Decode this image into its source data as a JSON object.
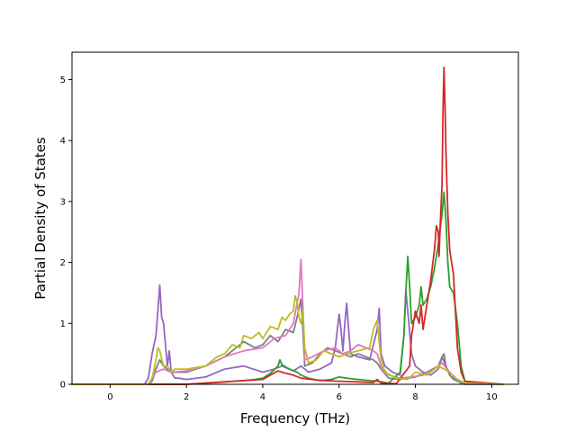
{
  "chart_data": {
    "type": "line",
    "title": "",
    "xlabel": "Frequency (THz)",
    "ylabel": "Partial Density of States",
    "xlim": [
      -1.0,
      10.7
    ],
    "ylim": [
      0,
      5.45
    ],
    "xticks": [
      0,
      2,
      4,
      6,
      8,
      10
    ],
    "yticks": [
      0,
      1,
      2,
      3,
      4,
      5
    ],
    "grid": false,
    "legend": "none",
    "series": [
      {
        "color": "#9467bd",
        "x": [
          -1.0,
          0.9,
          1.0,
          1.1,
          1.2,
          1.25,
          1.3,
          1.35,
          1.4,
          1.5,
          1.55,
          1.6,
          1.65,
          1.7,
          1.8,
          2.0,
          2.5,
          3.0,
          3.5,
          4.0,
          4.3,
          4.5,
          4.8,
          5.0,
          5.2,
          5.5,
          5.8,
          5.9,
          6.0,
          6.05,
          6.1,
          6.15,
          6.2,
          6.3,
          6.5,
          6.8,
          7.0,
          7.05,
          7.1,
          7.2,
          7.4,
          7.6,
          7.7,
          7.75,
          7.8,
          7.9,
          8.0,
          8.2,
          8.4,
          8.6,
          8.7,
          8.8,
          8.9,
          9.0,
          9.1,
          9.2,
          9.3,
          10.3
        ],
        "y": [
          0,
          0,
          0.1,
          0.5,
          0.8,
          1.2,
          1.63,
          1.1,
          1.0,
          0.3,
          0.55,
          0.2,
          0.15,
          0.1,
          0.1,
          0.08,
          0.12,
          0.25,
          0.3,
          0.2,
          0.25,
          0.3,
          0.22,
          0.3,
          0.2,
          0.25,
          0.35,
          0.6,
          1.15,
          0.9,
          0.55,
          1.0,
          1.33,
          0.5,
          0.45,
          0.4,
          0.9,
          1.25,
          0.5,
          0.3,
          0.2,
          0.15,
          0.8,
          1.55,
          1.2,
          0.5,
          0.3,
          0.2,
          0.15,
          0.25,
          0.45,
          0.3,
          0.15,
          0.1,
          0.05,
          0.02,
          0,
          0
        ]
      },
      {
        "color": "#7f7f7f",
        "x": [
          -1.0,
          1.0,
          1.1,
          1.2,
          1.3,
          1.4,
          1.6,
          2.0,
          2.5,
          3.0,
          3.2,
          3.5,
          3.8,
          4.0,
          4.2,
          4.4,
          4.6,
          4.8,
          4.9,
          5.0,
          5.05,
          5.1,
          5.3,
          5.5,
          5.7,
          5.9,
          6.1,
          6.3,
          6.5,
          6.7,
          6.9,
          7.0,
          7.1,
          7.3,
          7.6,
          7.8,
          8.0,
          8.3,
          8.6,
          8.7,
          8.75,
          8.8,
          8.9,
          9.0,
          9.2,
          10.3
        ],
        "y": [
          0,
          0,
          0.05,
          0.25,
          0.4,
          0.3,
          0.2,
          0.2,
          0.3,
          0.45,
          0.55,
          0.7,
          0.6,
          0.65,
          0.8,
          0.7,
          0.9,
          0.85,
          1.1,
          1.4,
          0.9,
          0.3,
          0.35,
          0.5,
          0.6,
          0.55,
          0.5,
          0.45,
          0.5,
          0.45,
          0.4,
          0.35,
          0.25,
          0.1,
          0.08,
          0.1,
          0.12,
          0.2,
          0.3,
          0.45,
          0.5,
          0.3,
          0.15,
          0.08,
          0.03,
          0
        ]
      },
      {
        "color": "#e377c2",
        "x": [
          -1.0,
          1.0,
          1.2,
          1.4,
          1.6,
          2.0,
          2.5,
          3.0,
          3.5,
          4.0,
          4.3,
          4.6,
          4.8,
          4.95,
          5.0,
          5.05,
          5.1,
          5.3,
          5.6,
          5.9,
          6.1,
          6.3,
          6.5,
          6.7,
          6.9,
          7.0,
          7.1,
          7.3,
          7.6,
          7.9,
          8.2,
          8.5,
          8.7,
          8.9,
          9.1,
          9.3,
          10.3
        ],
        "y": [
          0,
          0,
          0.2,
          0.25,
          0.2,
          0.22,
          0.3,
          0.45,
          0.55,
          0.6,
          0.75,
          0.8,
          1.0,
          1.5,
          2.05,
          1.3,
          0.4,
          0.45,
          0.55,
          0.6,
          0.5,
          0.55,
          0.65,
          0.6,
          0.55,
          0.5,
          0.3,
          0.15,
          0.1,
          0.12,
          0.15,
          0.25,
          0.35,
          0.2,
          0.08,
          0.02,
          0
        ]
      },
      {
        "color": "#2ca02c",
        "x": [
          -1.0,
          2.0,
          2.5,
          3.0,
          3.5,
          3.8,
          4.0,
          4.2,
          4.4,
          4.45,
          4.5,
          4.7,
          4.9,
          5.0,
          5.2,
          5.5,
          5.8,
          6.0,
          6.2,
          6.5,
          7.0,
          7.3,
          7.6,
          7.7,
          7.75,
          7.8,
          7.85,
          7.9,
          8.0,
          8.1,
          8.15,
          8.2,
          8.3,
          8.4,
          8.5,
          8.6,
          8.7,
          8.75,
          8.8,
          8.85,
          8.9,
          9.0,
          9.1,
          9.2,
          9.3,
          10.3
        ],
        "y": [
          0,
          0,
          0.02,
          0.04,
          0.06,
          0.08,
          0.1,
          0.18,
          0.3,
          0.4,
          0.32,
          0.25,
          0.2,
          0.15,
          0.1,
          0.06,
          0.08,
          0.12,
          0.1,
          0.08,
          0.05,
          0.02,
          0.2,
          0.8,
          1.5,
          2.1,
          1.6,
          1.0,
          1.1,
          1.3,
          1.6,
          1.3,
          1.4,
          1.6,
          1.9,
          2.3,
          2.8,
          3.15,
          2.7,
          2.0,
          1.6,
          1.5,
          1.0,
          0.3,
          0.05,
          0
        ]
      },
      {
        "color": "#d62728",
        "x": [
          -1.0,
          2.0,
          2.5,
          3.0,
          3.5,
          4.0,
          4.2,
          4.4,
          4.6,
          4.8,
          5.0,
          5.3,
          5.6,
          6.0,
          6.5,
          6.9,
          7.0,
          7.1,
          7.5,
          7.85,
          7.9,
          8.0,
          8.1,
          8.15,
          8.2,
          8.3,
          8.4,
          8.5,
          8.55,
          8.6,
          8.62,
          8.65,
          8.7,
          8.72,
          8.75,
          8.78,
          8.8,
          8.85,
          8.9,
          9.0,
          9.1,
          9.2,
          9.3,
          10.3
        ],
        "y": [
          0,
          0,
          0.02,
          0.04,
          0.06,
          0.08,
          0.15,
          0.22,
          0.18,
          0.15,
          0.1,
          0.08,
          0.06,
          0.05,
          0.04,
          0.03,
          0.08,
          0.02,
          0.01,
          0.3,
          0.8,
          1.2,
          1.0,
          1.3,
          0.9,
          1.3,
          1.7,
          2.2,
          2.6,
          2.5,
          2.1,
          2.6,
          3.3,
          4.4,
          5.2,
          4.5,
          3.8,
          2.8,
          2.2,
          1.8,
          0.6,
          0.2,
          0.05,
          0
        ]
      },
      {
        "color": "#bcbd22",
        "x": [
          -1.0,
          1.0,
          1.1,
          1.2,
          1.25,
          1.3,
          1.4,
          1.5,
          1.6,
          1.7,
          2.0,
          2.5,
          2.8,
          3.0,
          3.2,
          3.4,
          3.5,
          3.7,
          3.9,
          4.0,
          4.2,
          4.4,
          4.5,
          4.6,
          4.7,
          4.8,
          4.85,
          4.9,
          4.95,
          5.0,
          5.05,
          5.1,
          5.2,
          5.4,
          5.6,
          5.8,
          6.0,
          6.2,
          6.5,
          6.8,
          6.9,
          7.0,
          7.05,
          7.1,
          7.2,
          7.5,
          7.8,
          8.0,
          8.3,
          8.6,
          8.9,
          9.1,
          9.3,
          10.3
        ],
        "y": [
          0,
          0,
          0.1,
          0.4,
          0.6,
          0.55,
          0.3,
          0.3,
          0.2,
          0.25,
          0.25,
          0.3,
          0.45,
          0.5,
          0.65,
          0.6,
          0.8,
          0.75,
          0.85,
          0.75,
          0.95,
          0.9,
          1.1,
          1.05,
          1.15,
          1.2,
          1.45,
          1.35,
          1.1,
          1.0,
          1.2,
          0.6,
          0.35,
          0.4,
          0.55,
          0.5,
          0.45,
          0.5,
          0.55,
          0.6,
          0.9,
          1.05,
          0.7,
          0.4,
          0.2,
          0.1,
          0.08,
          0.2,
          0.15,
          0.3,
          0.2,
          0.08,
          0.02,
          0
        ]
      }
    ]
  }
}
